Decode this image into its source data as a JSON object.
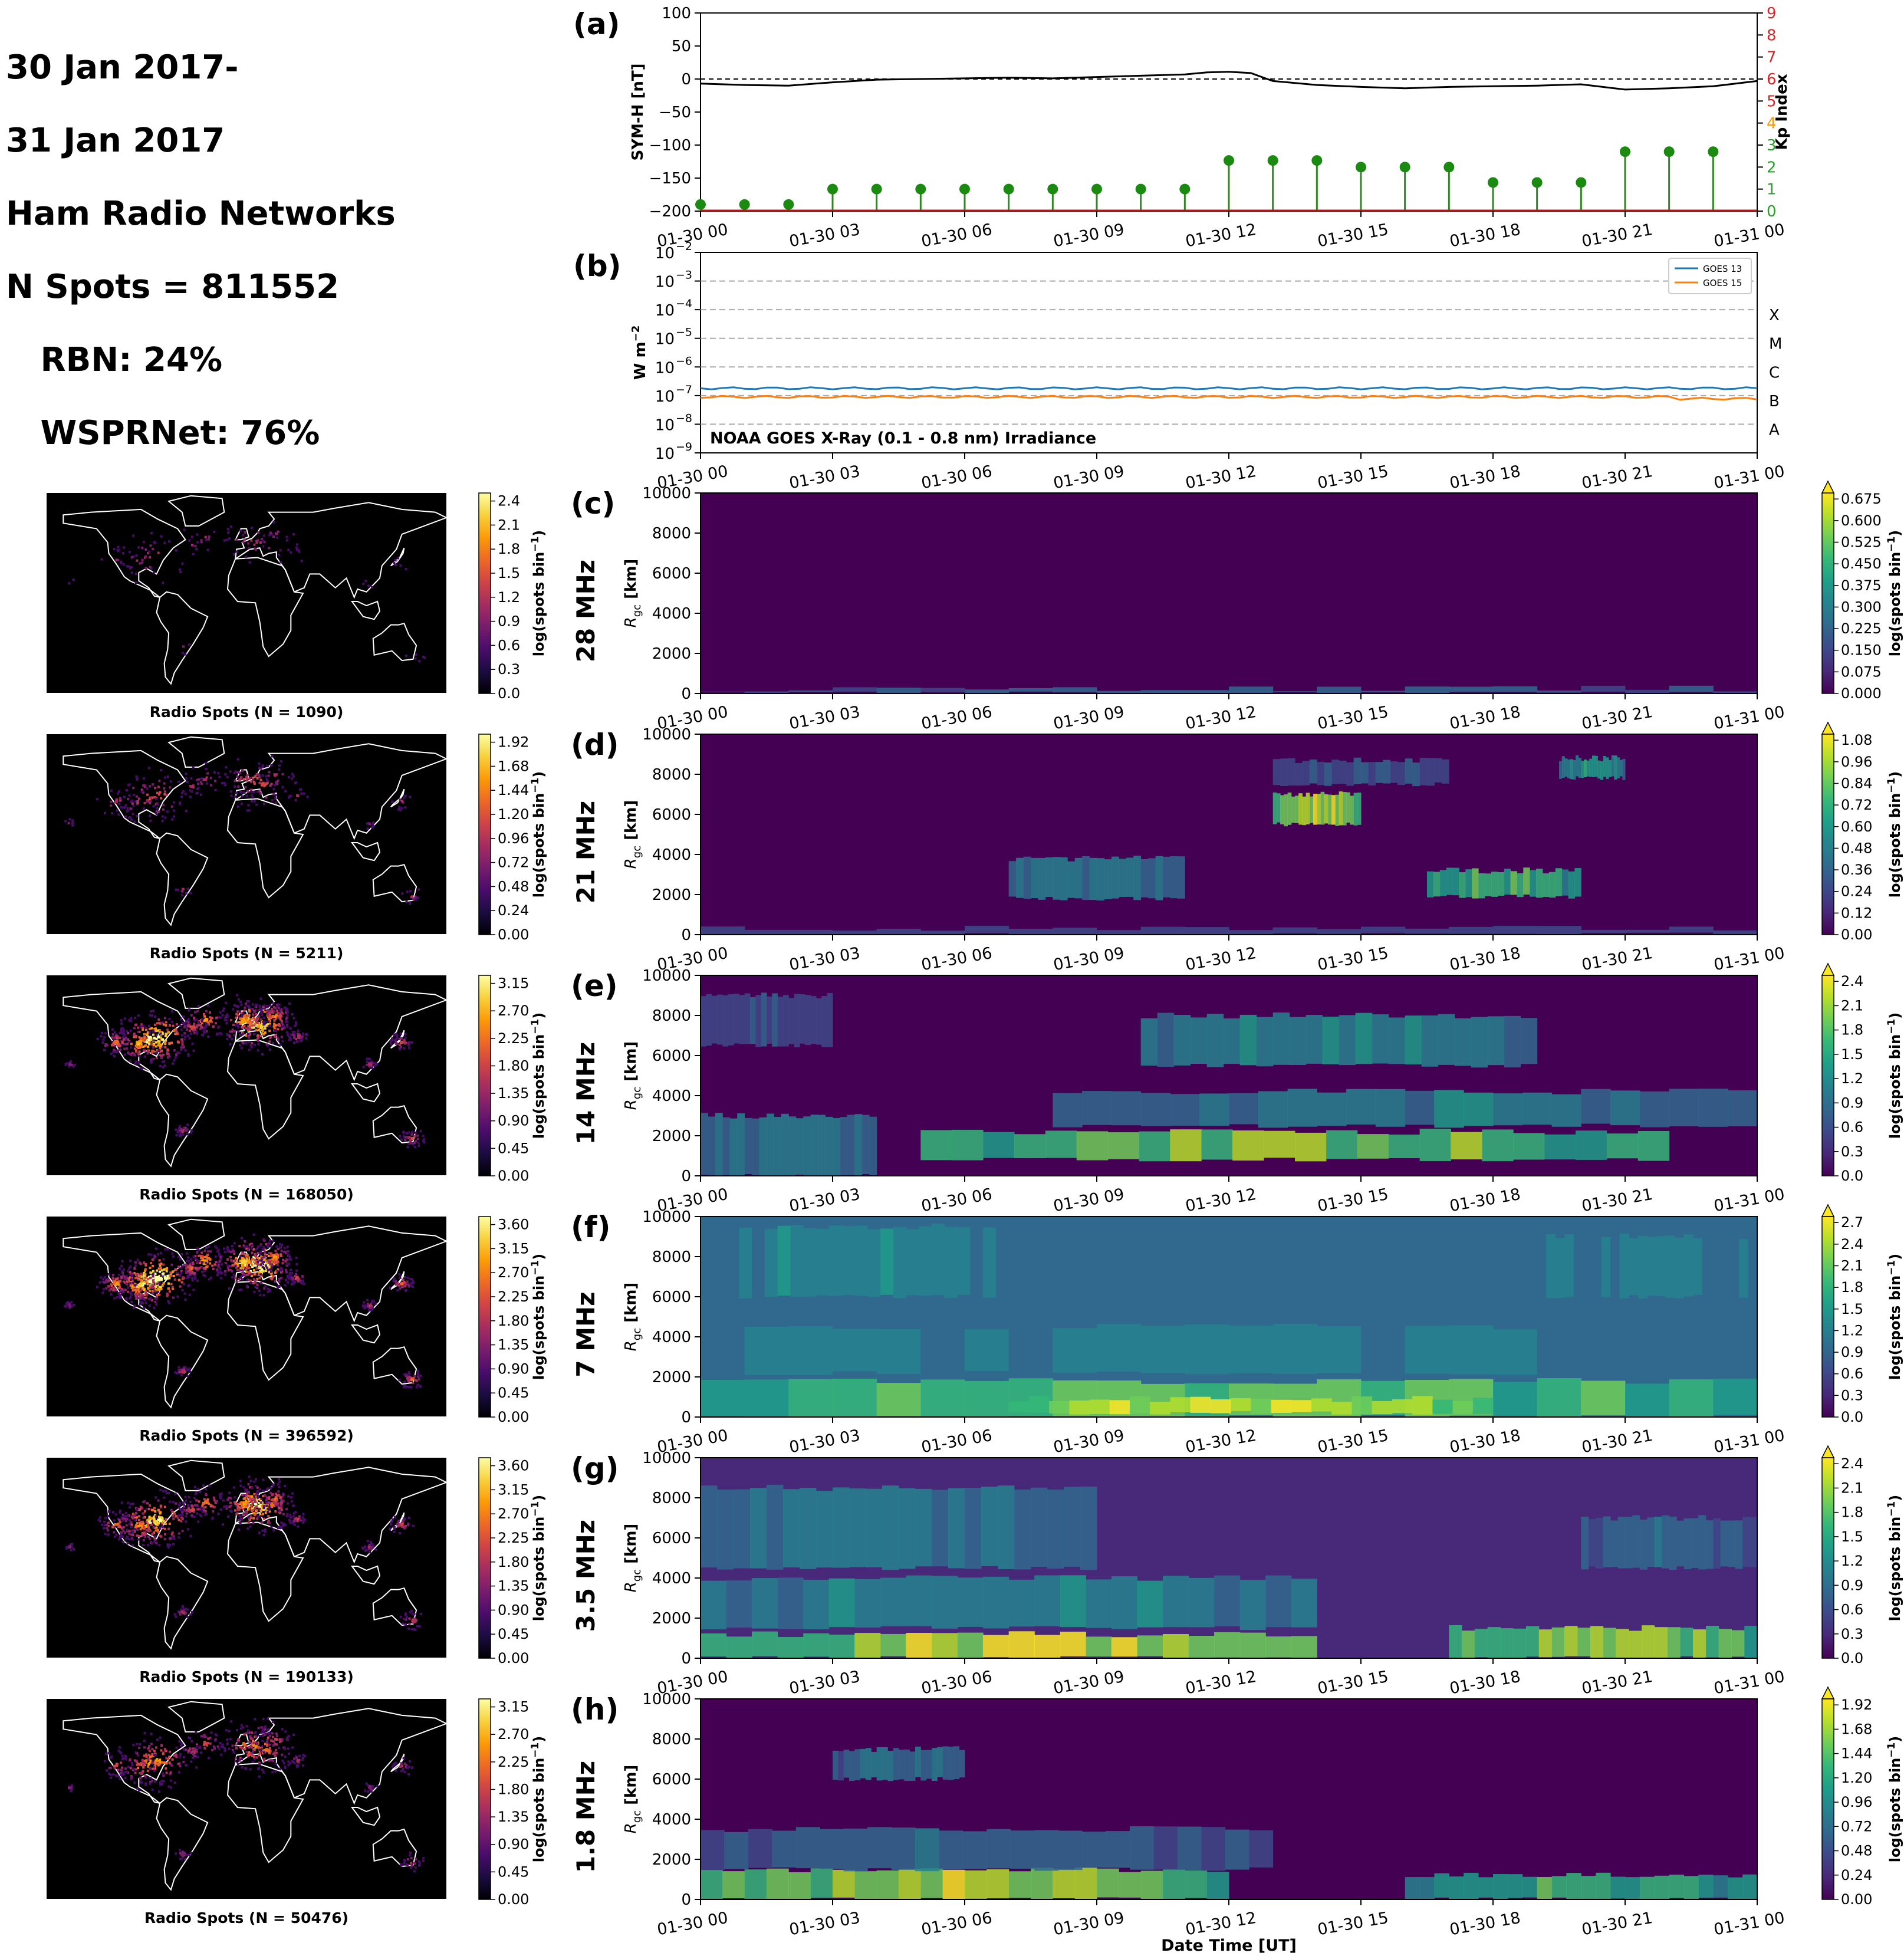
{
  "header": {
    "lines": [
      "30 Jan 2017-",
      "31 Jan 2017",
      "Ham Radio Networks",
      "N Spots = 811552",
      "   RBN: 24%",
      "   WSPRNet: 76%"
    ]
  },
  "time_ticks": [
    "01-30 00",
    "01-30 03",
    "01-30 06",
    "01-30 09",
    "01-30 12",
    "01-30 15",
    "01-30 18",
    "01-30 21",
    "01-31 00"
  ],
  "xlabel": "Date Time [UT]",
  "chart_data": [
    {
      "panel": "(a)",
      "type": "line",
      "ylabel": "SYM-H [nT]",
      "ylabel_right": "Kp Index",
      "ylim": [
        -200,
        100
      ],
      "ylim_right": [
        0,
        9
      ],
      "yticks": [
        100,
        50,
        0,
        -50,
        -100,
        -150,
        -200
      ],
      "yticks_right": [
        9,
        8,
        7,
        6,
        5,
        4,
        3,
        2,
        1,
        0
      ],
      "zero_line": "dashed",
      "symh": {
        "x_hours": [
          0,
          1,
          2,
          3,
          4,
          5,
          6,
          7,
          8,
          9,
          10,
          11,
          11.5,
          12,
          12.5,
          13,
          14,
          15,
          16,
          17,
          18,
          19,
          20,
          21,
          22,
          23,
          24
        ],
        "values": [
          -7,
          -9,
          -10,
          -5,
          -1,
          0,
          1,
          2,
          1,
          3,
          5,
          7,
          10,
          11,
          9,
          -3,
          -9,
          -12,
          -14,
          -12,
          -11,
          -10,
          -8,
          -16,
          -14,
          -11,
          -3
        ]
      },
      "kp": {
        "x_hours": [
          0,
          1,
          2,
          3,
          4,
          5,
          6,
          7,
          8,
          9,
          10,
          11,
          12,
          13,
          14,
          15,
          16,
          17,
          18,
          19,
          20,
          21,
          22,
          23
        ],
        "values": [
          0.3,
          0.3,
          0.3,
          1.0,
          1.0,
          1.0,
          1.0,
          1.0,
          1.0,
          1.0,
          1.0,
          1.0,
          2.3,
          2.3,
          2.3,
          2.0,
          2.0,
          2.0,
          1.3,
          1.3,
          1.3,
          2.7,
          2.7,
          2.7
        ]
      }
    },
    {
      "panel": "(b)",
      "type": "line",
      "ylabel": "W m",
      "ylabel_sup": "−2",
      "title": "NOAA GOES X-Ray (0.1 - 0.8 nm) Irradiance",
      "yscale": "log",
      "ylim_exp": [
        -9,
        -2
      ],
      "ytick_exp": [
        "−2",
        "−3",
        "−4",
        "−5",
        "−6",
        "−7",
        "−8",
        "−9"
      ],
      "flare_classes": [
        "X",
        "M",
        "C",
        "B",
        "A"
      ],
      "series": [
        {
          "name": "GOES 13",
          "color": "#1f77b4",
          "value": 1.8e-07
        },
        {
          "name": "GOES 15",
          "color": "#ff7f0e",
          "value": 9e-08
        }
      ],
      "legend": "top-right"
    }
  ],
  "bands": [
    {
      "panel": "(c)",
      "label": "28 MHz",
      "map_title": "Radio Spots (N = 1090)",
      "map_ticks": [
        "2.4",
        "2.1",
        "1.8",
        "1.5",
        "1.2",
        "0.9",
        "0.6",
        "0.3",
        "0.0"
      ],
      "heat_ticks": [
        "0.675",
        "0.600",
        "0.525",
        "0.450",
        "0.375",
        "0.300",
        "0.225",
        "0.150",
        "0.075",
        "0.000"
      ]
    },
    {
      "panel": "(d)",
      "label": "21 MHz",
      "map_title": "Radio Spots (N = 5211)",
      "map_ticks": [
        "1.92",
        "1.68",
        "1.44",
        "1.20",
        "0.96",
        "0.72",
        "0.48",
        "0.24",
        "0.00"
      ],
      "heat_ticks": [
        "1.08",
        "0.96",
        "0.84",
        "0.72",
        "0.60",
        "0.48",
        "0.36",
        "0.24",
        "0.12",
        "0.00"
      ]
    },
    {
      "panel": "(e)",
      "label": "14 MHz",
      "map_title": "Radio Spots (N = 168050)",
      "map_ticks": [
        "3.15",
        "2.70",
        "2.25",
        "1.80",
        "1.35",
        "0.90",
        "0.45",
        "0.00"
      ],
      "heat_ticks": [
        "2.4",
        "2.1",
        "1.8",
        "1.5",
        "1.2",
        "0.9",
        "0.6",
        "0.3",
        "0.0"
      ]
    },
    {
      "panel": "(f)",
      "label": "7 MHz",
      "map_title": "Radio Spots (N = 396592)",
      "map_ticks": [
        "3.60",
        "3.15",
        "2.70",
        "2.25",
        "1.80",
        "1.35",
        "0.90",
        "0.45",
        "0.00"
      ],
      "heat_ticks": [
        "2.7",
        "2.4",
        "2.1",
        "1.8",
        "1.5",
        "1.2",
        "0.9",
        "0.6",
        "0.3",
        "0.0"
      ]
    },
    {
      "panel": "(g)",
      "label": "3.5 MHz",
      "map_title": "Radio Spots (N = 190133)",
      "map_ticks": [
        "3.60",
        "3.15",
        "2.70",
        "2.25",
        "1.80",
        "1.35",
        "0.90",
        "0.45",
        "0.00"
      ],
      "heat_ticks": [
        "2.4",
        "2.1",
        "1.8",
        "1.5",
        "1.2",
        "0.9",
        "0.6",
        "0.3",
        "0.0"
      ]
    },
    {
      "panel": "(h)",
      "label": "1.8 MHz",
      "map_title": "Radio Spots (N = 50476)",
      "map_ticks": [
        "3.15",
        "2.70",
        "2.25",
        "1.80",
        "1.35",
        "0.90",
        "0.45",
        "0.00"
      ],
      "heat_ticks": [
        "1.92",
        "1.68",
        "1.44",
        "1.20",
        "0.96",
        "0.72",
        "0.48",
        "0.24",
        "0.00"
      ]
    }
  ],
  "heat_ylabel": "R",
  "heat_ylabel_sub": "gc",
  "heat_ylabel_unit": " [km]",
  "heat_yticks": [
    "10000",
    "8000",
    "6000",
    "4000",
    "2000",
    "0"
  ],
  "cbar_label": "log(spots bin",
  "cbar_label_sup": "−1",
  "cbar_label_end": ")"
}
